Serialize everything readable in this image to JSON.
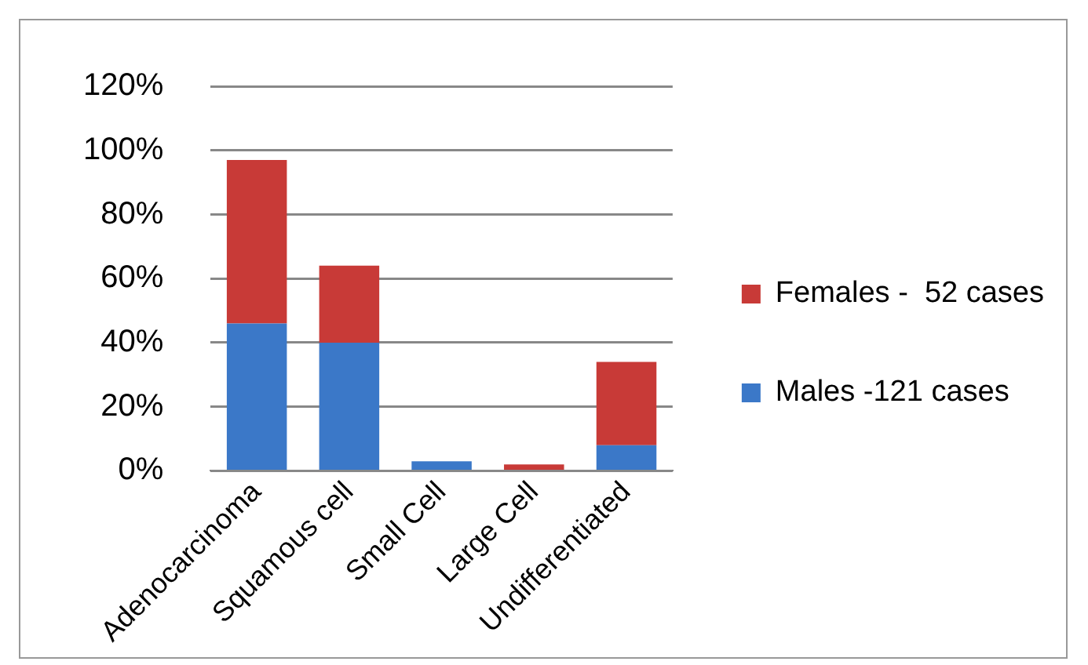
{
  "chart_data": {
    "type": "bar",
    "stacked": true,
    "categories": [
      "Adenocarcinoma",
      "Squamous cell",
      "Small Cell",
      "Large Cell",
      "Undifferentiated"
    ],
    "series": [
      {
        "name": "Males -121 cases",
        "color": "#3b78c8",
        "values": [
          46,
          40,
          3,
          0,
          8
        ]
      },
      {
        "name": "Females -  52 cases",
        "color": "#c83a37",
        "values": [
          51,
          24,
          0,
          2,
          26
        ]
      }
    ],
    "ylim": [
      0,
      120
    ],
    "yticks": [
      {
        "value": 0,
        "label": "0%"
      },
      {
        "value": 20,
        "label": "20%"
      },
      {
        "value": 40,
        "label": "40%"
      },
      {
        "value": 60,
        "label": "60%"
      },
      {
        "value": 80,
        "label": "80%"
      },
      {
        "value": 100,
        "label": "100%"
      },
      {
        "value": 120,
        "label": "120%"
      }
    ],
    "grid": "y",
    "legend": "right"
  }
}
